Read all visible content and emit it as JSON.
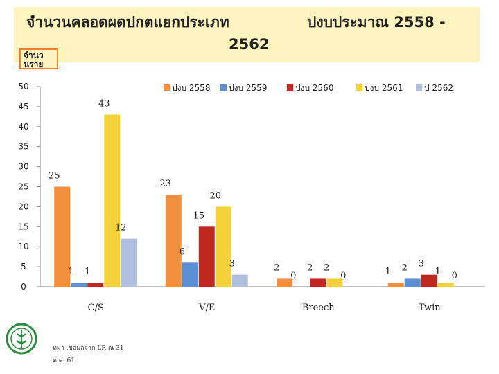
{
  "slide": {
    "title_line1": "จำนวนคลอดผดปกตแยกประเภท",
    "title_line1b": "ปงบประมาณ  2558 -",
    "title_line2": "2562",
    "ylabel": "จำนว นราย",
    "footer_line1": "ทมา    .ขอมลจาก       LR ณ 31",
    "footer_line2": "ต.ค. 61"
  },
  "colors": {
    "band": "#fdf3bf",
    "accent": "#f07f2a",
    "logo": "#2e8b3d"
  },
  "chart_data": {
    "type": "bar",
    "categories": [
      "C/S",
      "V/E",
      "Breech",
      "Twin"
    ],
    "ylim": [
      0,
      50
    ],
    "yticks": [
      0,
      5,
      10,
      15,
      20,
      25,
      30,
      35,
      40,
      45,
      50
    ],
    "legend_position": "top-right",
    "grid": false,
    "series": [
      {
        "name": "ปงบ 2558",
        "color": "#f28e3c",
        "values": [
          25,
          23,
          2,
          1
        ]
      },
      {
        "name": "ปงบ 2559",
        "color": "#5b8fd6",
        "values": [
          1,
          6,
          0,
          2
        ]
      },
      {
        "name": "ปงบ 2560",
        "color": "#c0281f",
        "values": [
          1,
          15,
          2,
          3
        ]
      },
      {
        "name": "ปงบ 2561",
        "color": "#f4d03a",
        "values": [
          43,
          20,
          2,
          1
        ]
      },
      {
        "name": "ป 2562",
        "color": "#aebfdf",
        "values": [
          12,
          3,
          0,
          0
        ]
      }
    ]
  }
}
